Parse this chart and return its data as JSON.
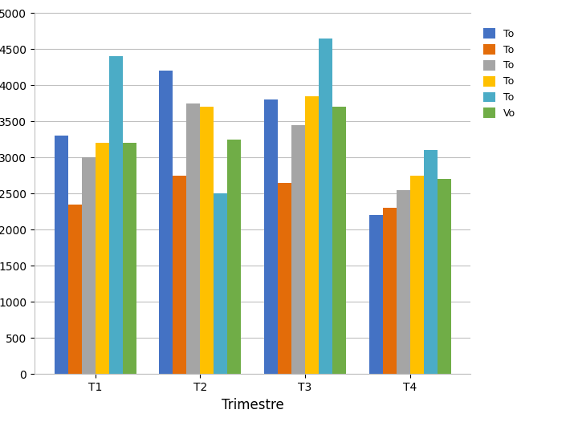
{
  "categories": [
    "T1",
    "T2",
    "T3",
    "T4"
  ],
  "series": [
    {
      "label": "To",
      "color": "#4472C4",
      "values": [
        3300,
        4200,
        3800,
        2200
      ]
    },
    {
      "label": "To",
      "color": "#E36C09",
      "values": [
        2350,
        2750,
        2650,
        2300
      ]
    },
    {
      "label": "To",
      "color": "#A5A5A5",
      "values": [
        3000,
        3750,
        3450,
        2550
      ]
    },
    {
      "label": "To",
      "color": "#FFC000",
      "values": [
        3200,
        3700,
        3850,
        2750
      ]
    },
    {
      "label": "To",
      "color": "#4BACC6",
      "values": [
        4400,
        2500,
        4650,
        3100
      ]
    },
    {
      "label": "Vo",
      "color": "#70AD47",
      "values": [
        3200,
        3250,
        3700,
        2700
      ]
    }
  ],
  "xlabel": "Trimestre",
  "ylabel": "",
  "ylim": [
    0,
    5000
  ],
  "ytick_max": 5000,
  "ytick_interval": 500,
  "bar_width": 0.13,
  "grid": true,
  "background_color": "#FFFFFF",
  "tick_fontsize": 10,
  "label_fontsize": 12,
  "figsize": [
    7.15,
    5.36
  ],
  "dpi": 100
}
